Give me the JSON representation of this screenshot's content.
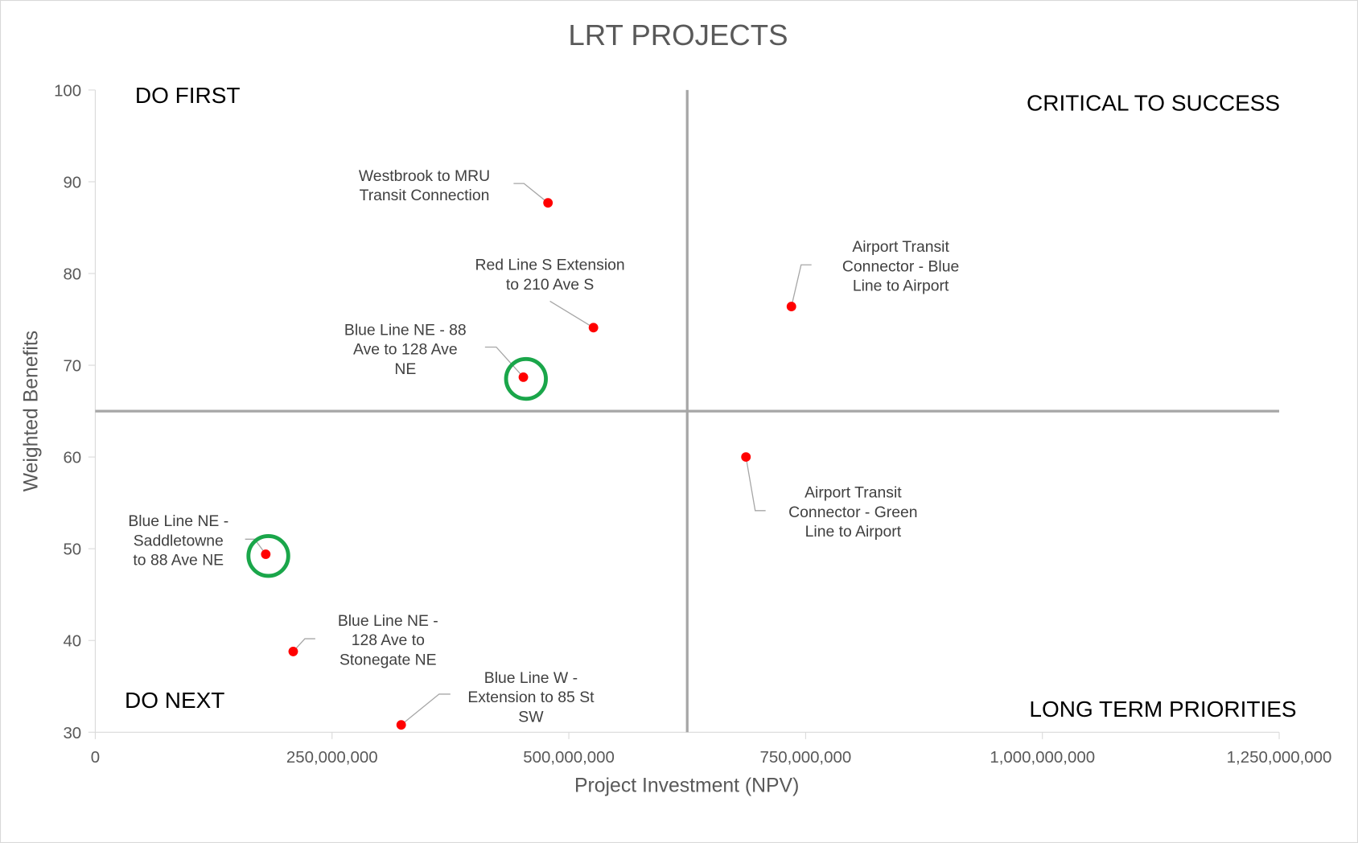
{
  "chart_data": {
    "type": "scatter",
    "title": "LRT  PROJECTS",
    "x_label": "Project Investment (NPV)",
    "y_label": "Weighted Benefits",
    "xlim": [
      0,
      1250000000
    ],
    "ylim": [
      30,
      100
    ],
    "xticks": [
      0,
      {
        "value": 250000000,
        "label": "250,000,000"
      },
      {
        "value": 500000000,
        "label": "500,000,000"
      },
      {
        "value": 750000000,
        "label": "750,000,000"
      },
      {
        "value": 1000000000,
        "label": "1,000,000,000"
      },
      {
        "value": 1250000000,
        "label": "1,250,000,000"
      }
    ],
    "yticks": [
      30,
      40,
      50,
      60,
      70,
      80,
      90,
      100
    ],
    "color": "#ff0000",
    "highlight_color": "#1aa64a",
    "x": [
      478000000,
      526000000,
      452000000,
      735000000,
      687000000,
      180000000,
      209000000,
      323000000
    ],
    "values": [
      87.7,
      74.1,
      68.7,
      76.4,
      60,
      49.4,
      38.8,
      30.8
    ],
    "point_labels": [
      [
        "Westbrook to MRU",
        "Transit Connection"
      ],
      [
        "Red Line S Extension",
        "to 210 Ave S"
      ],
      [
        "Blue Line NE - 88",
        "Ave to 128 Ave",
        "NE"
      ],
      [
        "Airport Transit",
        "Connector - Blue",
        "Line to Airport"
      ],
      [
        "Airport Transit",
        "Connector - Green",
        "Line to Airport"
      ],
      [
        "Blue Line NE -",
        "Saddletowne",
        "to 88 Ave NE"
      ],
      [
        "Blue Line NE -",
        "128 Ave to",
        "Stonegate NE"
      ],
      [
        "Blue Line W -",
        "Extension to 85 St",
        "SW"
      ]
    ],
    "highlighted": [
      false,
      false,
      true,
      false,
      false,
      true,
      false,
      false
    ],
    "quadrant_x": 625000000,
    "quadrant_y": 65,
    "quadrant_labels": {
      "top_left": "DO FIRST",
      "top_right": "CRITICAL TO SUCCESS",
      "bottom_left": "DO NEXT",
      "bottom_right": "LONG TERM PRIORITIES"
    }
  }
}
